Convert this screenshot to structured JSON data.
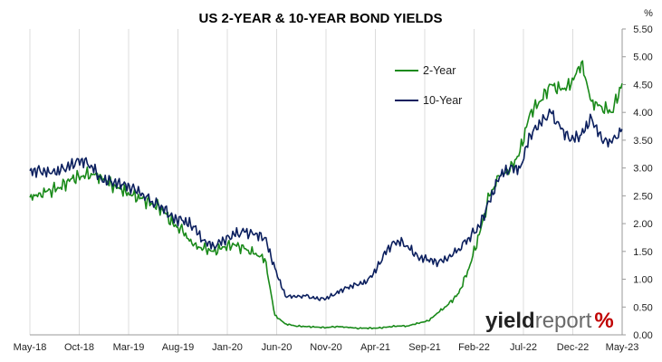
{
  "chart_data": {
    "type": "line",
    "title": "US 2-YEAR & 10-YEAR BOND YIELDS",
    "ylabel_unit": "%",
    "ylim": [
      0,
      5.5
    ],
    "y_ticks": [
      "0.00",
      "0.50",
      "1.00",
      "1.50",
      "2.00",
      "2.50",
      "3.00",
      "3.50",
      "4.00",
      "4.50",
      "5.00",
      "5.50"
    ],
    "x_tick_labels": [
      "May-18",
      "Oct-18",
      "Mar-19",
      "Aug-19",
      "Jan-20",
      "Jun-20",
      "Nov-20",
      "Apr-21",
      "Sep-21",
      "Feb-22",
      "Jul-22",
      "Dec-22",
      "May-23"
    ],
    "grid": "vertical",
    "legend_position": "top-right",
    "series": [
      {
        "name": "2-Year",
        "color": "#1a8a1a",
        "points": [
          [
            0,
            2.47
          ],
          [
            1,
            2.55
          ],
          [
            2,
            2.6
          ],
          [
            3,
            2.65
          ],
          [
            4,
            2.8
          ],
          [
            5,
            2.85
          ],
          [
            6,
            2.9
          ],
          [
            7,
            2.85
          ],
          [
            8,
            2.7
          ],
          [
            9,
            2.6
          ],
          [
            10,
            2.5
          ],
          [
            11,
            2.45
          ],
          [
            12,
            2.35
          ],
          [
            13,
            2.25
          ],
          [
            14,
            2.0
          ],
          [
            15,
            1.85
          ],
          [
            16,
            1.6
          ],
          [
            17,
            1.55
          ],
          [
            18,
            1.5
          ],
          [
            19,
            1.58
          ],
          [
            20,
            1.62
          ],
          [
            21,
            1.55
          ],
          [
            22,
            1.45
          ],
          [
            23,
            1.37
          ],
          [
            24,
            0.35
          ],
          [
            25,
            0.2
          ],
          [
            26,
            0.16
          ],
          [
            27,
            0.15
          ],
          [
            28,
            0.14
          ],
          [
            29,
            0.13
          ],
          [
            30,
            0.15
          ],
          [
            31,
            0.14
          ],
          [
            32,
            0.12
          ],
          [
            33,
            0.12
          ],
          [
            34,
            0.12
          ],
          [
            35,
            0.14
          ],
          [
            36,
            0.16
          ],
          [
            37,
            0.16
          ],
          [
            38,
            0.21
          ],
          [
            39,
            0.25
          ],
          [
            40,
            0.4
          ],
          [
            41,
            0.55
          ],
          [
            42,
            0.75
          ],
          [
            43,
            1.2
          ],
          [
            44,
            1.8
          ],
          [
            45,
            2.5
          ],
          [
            46,
            2.85
          ],
          [
            47,
            2.95
          ],
          [
            48,
            3.3
          ],
          [
            49,
            4.0
          ],
          [
            50,
            4.2
          ],
          [
            51,
            4.5
          ],
          [
            52,
            4.4
          ],
          [
            53,
            4.5
          ],
          [
            54,
            4.9
          ],
          [
            55,
            4.2
          ],
          [
            56,
            4.1
          ],
          [
            57,
            4.0
          ],
          [
            58,
            4.52
          ]
        ]
      },
      {
        "name": "10-Year",
        "color": "#0b1f5e",
        "points": [
          [
            0,
            2.95
          ],
          [
            1,
            2.95
          ],
          [
            2,
            2.9
          ],
          [
            3,
            2.95
          ],
          [
            4,
            3.05
          ],
          [
            5,
            3.15
          ],
          [
            6,
            3.05
          ],
          [
            7,
            2.8
          ],
          [
            8,
            2.75
          ],
          [
            9,
            2.7
          ],
          [
            10,
            2.65
          ],
          [
            11,
            2.55
          ],
          [
            12,
            2.4
          ],
          [
            13,
            2.3
          ],
          [
            14,
            2.1
          ],
          [
            15,
            2.05
          ],
          [
            16,
            1.95
          ],
          [
            17,
            1.7
          ],
          [
            18,
            1.6
          ],
          [
            19,
            1.7
          ],
          [
            20,
            1.8
          ],
          [
            21,
            1.85
          ],
          [
            22,
            1.8
          ],
          [
            23,
            1.75
          ],
          [
            24,
            1.2
          ],
          [
            25,
            0.7
          ],
          [
            26,
            0.68
          ],
          [
            27,
            0.7
          ],
          [
            28,
            0.65
          ],
          [
            29,
            0.65
          ],
          [
            30,
            0.75
          ],
          [
            31,
            0.85
          ],
          [
            32,
            0.9
          ],
          [
            33,
            0.95
          ],
          [
            34,
            1.2
          ],
          [
            35,
            1.55
          ],
          [
            36,
            1.7
          ],
          [
            37,
            1.6
          ],
          [
            38,
            1.4
          ],
          [
            39,
            1.35
          ],
          [
            40,
            1.3
          ],
          [
            41,
            1.4
          ],
          [
            42,
            1.55
          ],
          [
            43,
            1.75
          ],
          [
            44,
            1.95
          ],
          [
            45,
            2.4
          ],
          [
            46,
            2.85
          ],
          [
            47,
            3.0
          ],
          [
            48,
            3.0
          ],
          [
            49,
            3.6
          ],
          [
            50,
            3.8
          ],
          [
            51,
            4.0
          ],
          [
            52,
            3.7
          ],
          [
            53,
            3.5
          ],
          [
            54,
            3.6
          ],
          [
            55,
            3.9
          ],
          [
            56,
            3.5
          ],
          [
            57,
            3.45
          ],
          [
            58,
            3.7
          ]
        ]
      }
    ]
  },
  "branding": {
    "logo_part1": "yield",
    "logo_part2": "report",
    "logo_symbol": "%"
  }
}
